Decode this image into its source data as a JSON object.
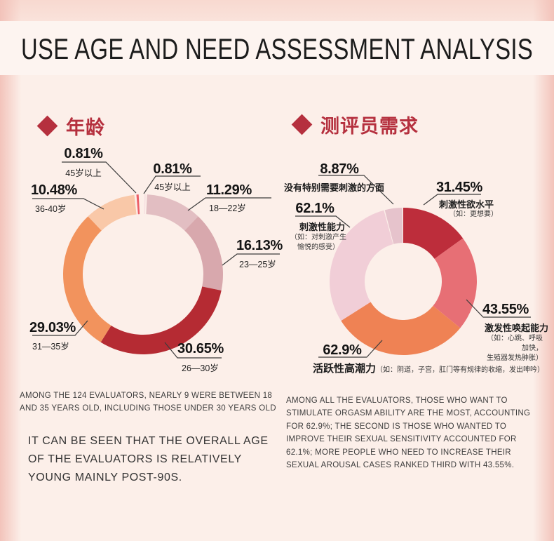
{
  "title": "USE AGE AND NEED ASSESSMENT ANALYSIS",
  "accent_color": "#b5303e",
  "background_color": "#fcefe9",
  "age_section": {
    "heading": "年龄",
    "note": "AMONG THE 124 EVALUATORS, NEARLY 9 WERE BETWEEN 18 AND 35 YEARS OLD, INCLUDING THOSE UNDER 30 YEARS OLD",
    "conclusion": "IT CAN BE SEEN THAT THE OVERALL AGE OF THE EVALUATORS IS RELATIVELY YOUNG MAINLY POST-90S."
  },
  "needs_section": {
    "heading": "测评员需求",
    "note": "AMONG ALL THE EVALUATORS, THOSE WHO WANT TO STIMULATE ORGASM ABILITY ARE THE MOST, ACCOUNTING FOR 62.9%; THE SECOND IS THOSE WHO WANTED TO IMPROVE THEIR SEXUAL SENSITIVITY ACCOUNTED FOR 62.1%; MORE PEOPLE WHO NEED TO INCREASE THEIR SEXUAL AROUSAL CASES RANKED THIRD WITH 43.55%."
  },
  "chart_data": [
    {
      "type": "pie",
      "subtype": "donut",
      "title": "年龄",
      "legend_position": "none",
      "total_basis": "percent-of-100",
      "slices": [
        {
          "label": "45岁以上",
          "pct": "0.81%",
          "value": 0.81,
          "color": "#f6dfe0"
        },
        {
          "label": "18—22岁",
          "pct": "11.29%",
          "value": 11.29,
          "color": "#e2bec2"
        },
        {
          "label": "23—25岁",
          "pct": "16.13%",
          "value": 16.13,
          "color": "#d8a8ad"
        },
        {
          "label": "26—30岁",
          "pct": "30.65%",
          "value": 30.65,
          "color": "#b52b33"
        },
        {
          "label": "31—35岁",
          "pct": "29.03%",
          "value": 29.03,
          "color": "#f2935d"
        },
        {
          "label": "36-40岁",
          "pct": "10.48%",
          "value": 10.48,
          "color": "#f9c8a8"
        },
        {
          "label": "45岁以上",
          "pct": "0.81%",
          "value": 0.81,
          "color": "#ec5f68"
        }
      ]
    },
    {
      "type": "pie",
      "subtype": "donut",
      "title": "测评员需求",
      "legend_position": "none",
      "total_basis": "multi-select, angles proportional to value/sum",
      "slices": [
        {
          "label": "刺激性欲水平",
          "note": "（如：更想要）",
          "pct": "31.45%",
          "value": 31.45,
          "color": "#bd2d3b"
        },
        {
          "label": "激发性唤起能力",
          "note": "（如：心跳、呼吸加快，\n生殖器发热肿胀）",
          "pct": "43.55%",
          "value": 43.55,
          "color": "#e76f75"
        },
        {
          "label": "活跃性高潮力",
          "note": "（如：阴道，子宫，肛门等有规律的收缩，发出呻吟）",
          "pct": "62.9%",
          "value": 62.9,
          "color": "#ef8254"
        },
        {
          "label": "刺激性能力",
          "note": "（如：对刺激产生\n愉悦的感受）",
          "pct": "62.1%",
          "value": 62.1,
          "color": "#f1ced7"
        },
        {
          "label": "没有特别需要刺激的方面",
          "pct": "8.87%",
          "value": 8.87,
          "color": "#e6c3cc"
        }
      ]
    }
  ]
}
